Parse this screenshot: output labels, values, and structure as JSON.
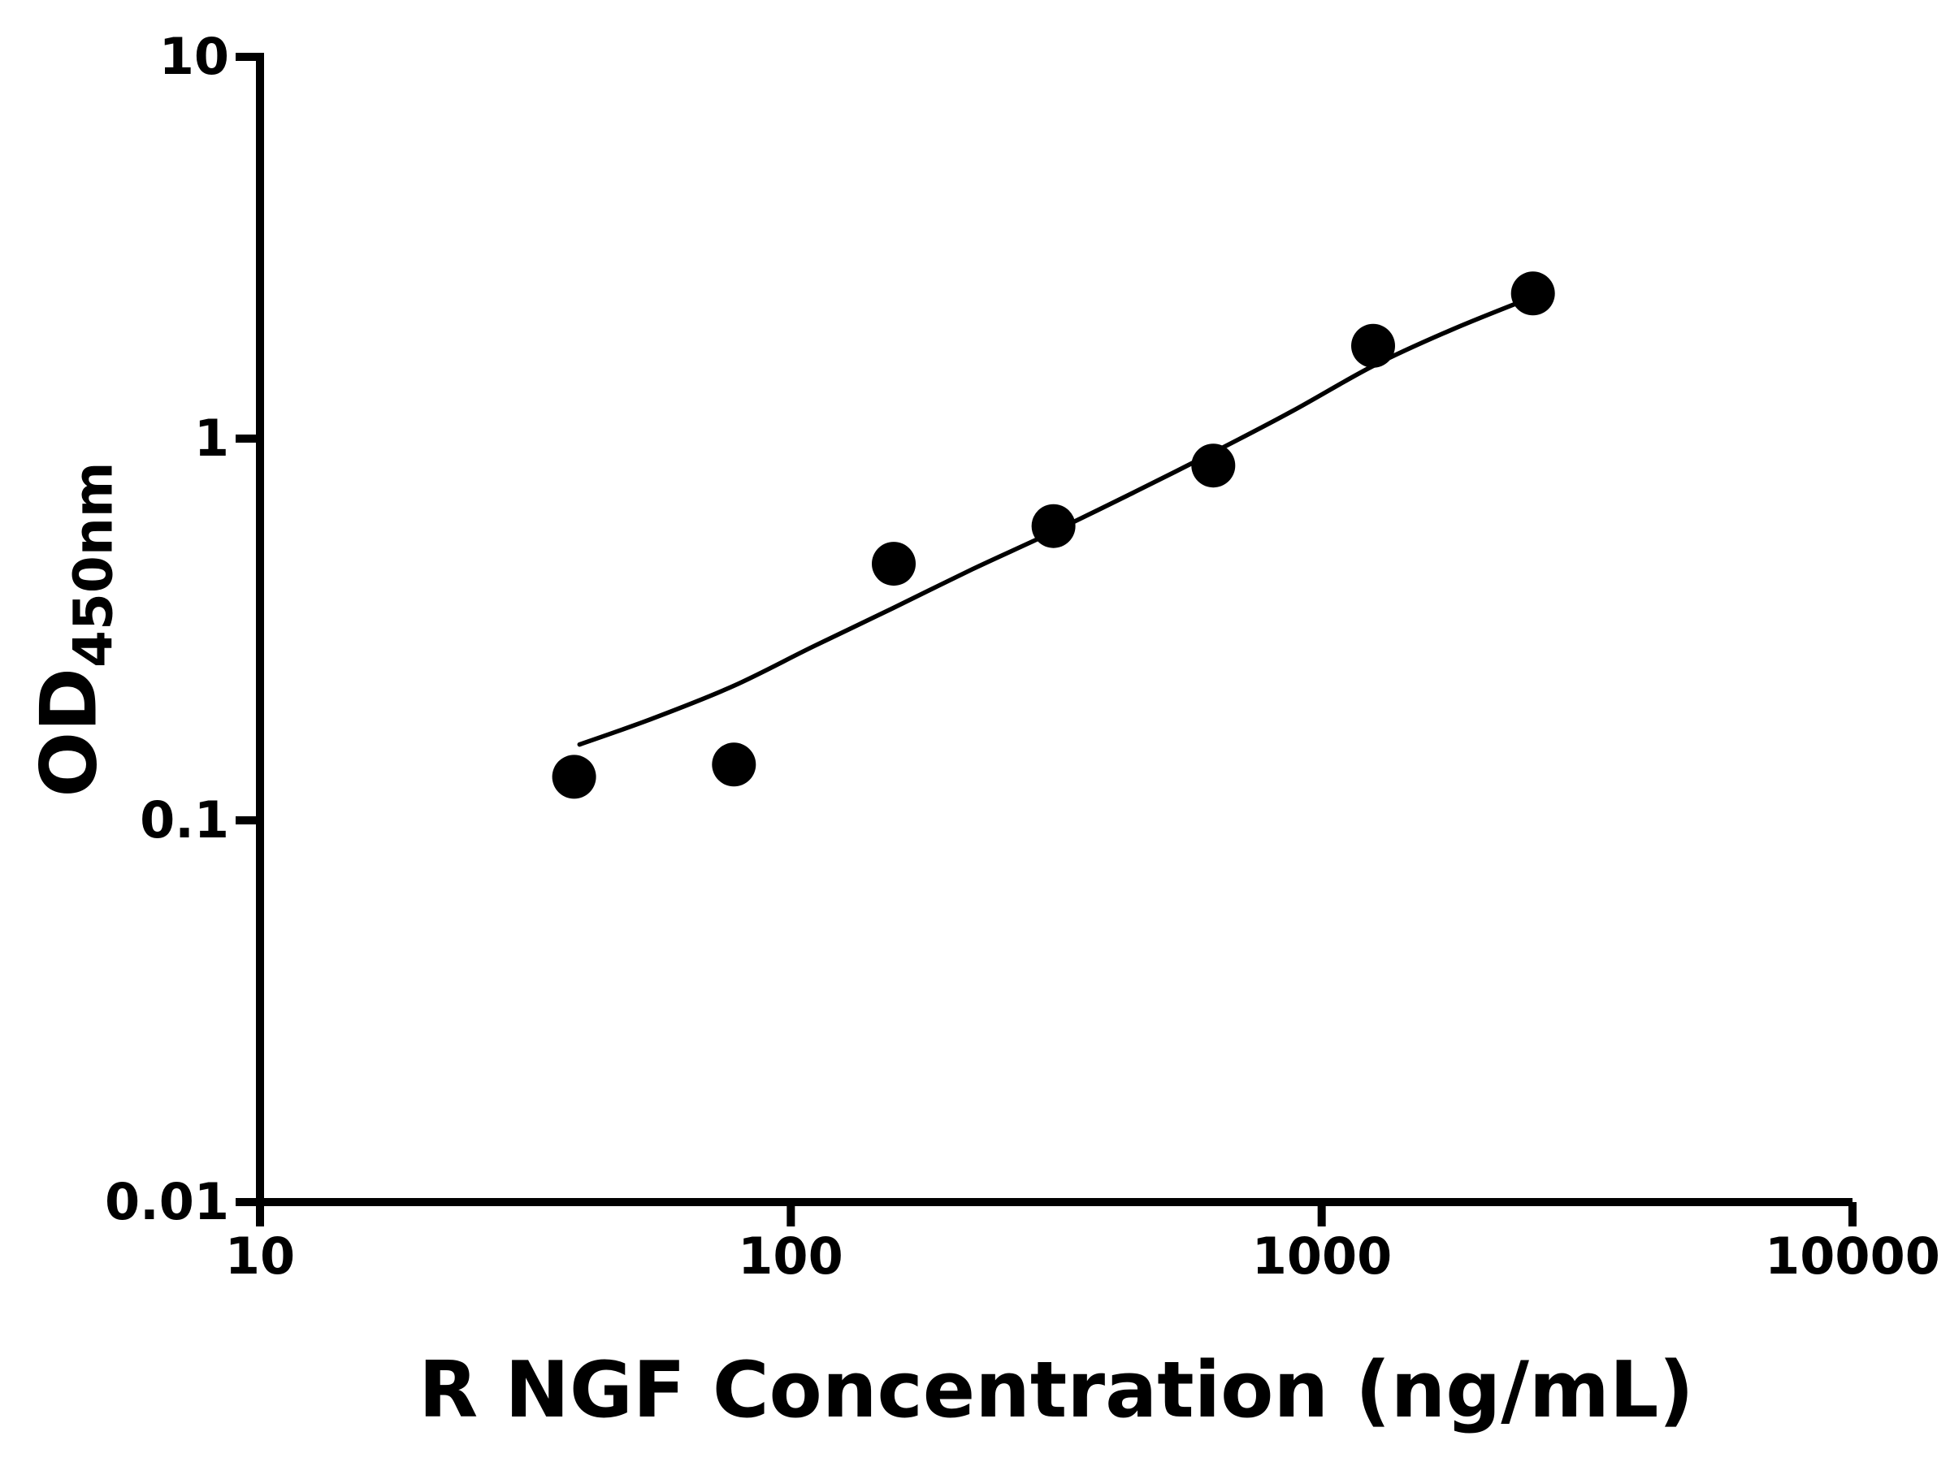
{
  "chart_data": {
    "type": "scatter",
    "title": "",
    "xlabel": "R NGF Concentration (ng/mL)",
    "ylabel_main": "OD",
    "ylabel_sub": "450nm",
    "x_scale": "log",
    "y_scale": "log",
    "xlim": [
      10,
      10000
    ],
    "ylim": [
      0.01,
      10
    ],
    "x_ticks": [
      10,
      100,
      1000,
      10000
    ],
    "x_tick_labels": [
      "10",
      "100",
      "1000",
      "10000"
    ],
    "y_ticks": [
      10,
      1,
      0.1,
      0.01
    ],
    "y_tick_labels": [
      "10",
      "1",
      "0.1",
      "0.01"
    ],
    "grid": false,
    "legend": "none",
    "colors": {
      "axis": "#000000",
      "marker": "#000000",
      "curve": "#000000",
      "background": "#ffffff"
    },
    "series": [
      {
        "name": "standard-curve-points",
        "marker": "filled-circle",
        "points": [
          {
            "x": 39.06,
            "y": 0.13
          },
          {
            "x": 78.13,
            "y": 0.14
          },
          {
            "x": 156.25,
            "y": 0.47
          },
          {
            "x": 312.5,
            "y": 0.59
          },
          {
            "x": 625,
            "y": 0.85
          },
          {
            "x": 1250,
            "y": 1.75
          },
          {
            "x": 2500,
            "y": 2.4
          }
        ]
      }
    ],
    "fit_curve": {
      "name": "four-parameter-logistic-fit",
      "points": [
        [
          40,
          0.158
        ],
        [
          55,
          0.185
        ],
        [
          78,
          0.225
        ],
        [
          110,
          0.285
        ],
        [
          156,
          0.36
        ],
        [
          220,
          0.455
        ],
        [
          312,
          0.57
        ],
        [
          440,
          0.72
        ],
        [
          625,
          0.92
        ],
        [
          880,
          1.18
        ],
        [
          1250,
          1.55
        ],
        [
          1760,
          1.93
        ],
        [
          2500,
          2.35
        ]
      ]
    }
  }
}
